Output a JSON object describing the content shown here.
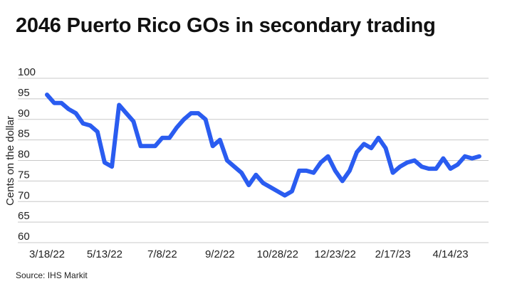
{
  "chart_data": {
    "type": "line",
    "title": "2046 Puerto Rico GOs in secondary trading",
    "ylabel": "Cents on the dollar",
    "xlabel": "",
    "source": "Source: IHS Markit",
    "ylim": [
      60,
      100
    ],
    "yticks": [
      60,
      65,
      70,
      75,
      80,
      85,
      90,
      95,
      100
    ],
    "xtick_labels": [
      "3/18/22",
      "5/13/22",
      "7/8/22",
      "9/2/22",
      "10/28/22",
      "12/23/22",
      "2/17/23",
      "4/14/23"
    ],
    "xtick_index": [
      0,
      8,
      16,
      24,
      32,
      40,
      48,
      56
    ],
    "grid": true,
    "line_color": "#2a5cf0",
    "series": [
      {
        "values": [
          96,
          94,
          94,
          92.5,
          91.5,
          89,
          88.5,
          87,
          79.5,
          78.5,
          93.5,
          91.5,
          89.5,
          83.5,
          83.5,
          83.5,
          85.5,
          85.5,
          88,
          90,
          91.5,
          91.5,
          90,
          83.5,
          85,
          80,
          78.5,
          77,
          74,
          76.5,
          74.5,
          73.5,
          72.5,
          71.5,
          72.5,
          77.5,
          77.5,
          77,
          79.5,
          81,
          77.5,
          75,
          77.5,
          82,
          84,
          83,
          85.5,
          83,
          77,
          78.5,
          79.5,
          80,
          78.5,
          78,
          78,
          80.5,
          78,
          79,
          81,
          80.5,
          81
        ]
      }
    ]
  }
}
